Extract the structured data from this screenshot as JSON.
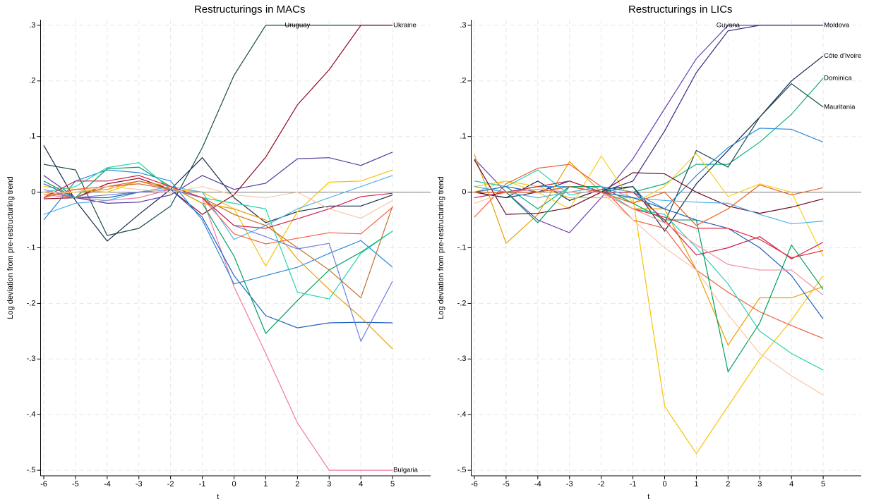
{
  "chart_data": [
    {
      "type": "line",
      "title": "Restructurings in MACs",
      "x_label": "t",
      "y_label": "Log deviation from pre-restructuring trend",
      "x": [
        -6,
        -5,
        -4,
        -3,
        -2,
        -1,
        0,
        1,
        2,
        3,
        4,
        5
      ],
      "xlim": [
        -6.1,
        6.2
      ],
      "ylim": [
        -0.51,
        0.31
      ],
      "xticks": [
        -6,
        -5,
        -4,
        -3,
        -2,
        -1,
        0,
        1,
        2,
        3,
        4,
        5
      ],
      "yticks": [
        {
          "value": 0.3,
          "label": ".3"
        },
        {
          "value": 0.2,
          "label": ".2"
        },
        {
          "value": 0.1,
          "label": ".1"
        },
        0,
        {
          "value": -0.1,
          "label": "-.1"
        },
        {
          "value": -0.2,
          "label": "-.2"
        },
        {
          "value": -0.3,
          "label": "-.3"
        },
        {
          "value": -0.4,
          "label": "-.4"
        },
        {
          "value": -0.5,
          "label": "-.5"
        }
      ],
      "grid": true,
      "zero_line": true,
      "series": [
        {
          "name": "Ukraine",
          "color": "#1a4d4d",
          "values": [
            0.05,
            0.04,
            -0.078,
            -0.065,
            -0.025,
            0.08,
            0.21,
            0.3,
            0.3,
            0.3,
            0.3,
            0.3
          ]
        },
        {
          "name": "Uruguay",
          "color": "#8b0a1e",
          "values": [
            -0.012,
            -0.01,
            0.015,
            0.025,
            0.005,
            -0.04,
            -0.005,
            0.063,
            0.157,
            0.22,
            0.3,
            0.3
          ]
        },
        {
          "name": "Bulgaria",
          "color": "#f27aa0",
          "values": [
            -0.005,
            -0.01,
            -0.015,
            -0.01,
            0.005,
            -0.01,
            -0.17,
            -0.29,
            -0.415,
            -0.5,
            -0.5,
            -0.5
          ]
        },
        {
          "color": "#14284b",
          "values": [
            0.084,
            -0.015,
            -0.088,
            -0.04,
            0.005,
            0.062,
            -0.01,
            -0.055,
            -0.035,
            -0.025,
            -0.025,
            -0.005
          ]
        },
        {
          "color": "#55389a",
          "values": [
            0.03,
            -0.01,
            -0.02,
            -0.018,
            -0.005,
            0.03,
            0.005,
            0.016,
            0.06,
            0.062,
            0.048,
            0.072
          ]
        },
        {
          "color": "#f5c400",
          "values": [
            0.01,
            0.005,
            0.0,
            0.02,
            0.005,
            0.0,
            -0.03,
            -0.133,
            -0.035,
            0.018,
            0.02,
            0.04
          ]
        },
        {
          "color": "#4fb3e8",
          "values": [
            -0.04,
            -0.02,
            -0.015,
            0.0,
            0.01,
            0.0,
            -0.085,
            -0.06,
            -0.03,
            -0.01,
            0.01,
            0.03
          ]
        },
        {
          "color": "#2a8ad8",
          "values": [
            -0.05,
            0.02,
            0.04,
            0.035,
            0.02,
            -0.05,
            -0.165,
            -0.15,
            -0.135,
            -0.11,
            -0.087,
            -0.135
          ]
        },
        {
          "color": "#2060c0",
          "values": [
            0.015,
            -0.01,
            -0.01,
            0.0,
            0.005,
            -0.045,
            -0.15,
            -0.222,
            -0.244,
            -0.235,
            -0.234,
            -0.235
          ]
        },
        {
          "color": "#00a060",
          "values": [
            0.02,
            -0.01,
            0.042,
            0.045,
            0.01,
            -0.02,
            -0.115,
            -0.254,
            -0.195,
            -0.14,
            -0.108,
            -0.07
          ]
        },
        {
          "color": "#25d4b0",
          "values": [
            0.0,
            0.01,
            0.044,
            0.053,
            0.005,
            -0.01,
            -0.02,
            -0.03,
            -0.18,
            -0.192,
            -0.11,
            -0.07
          ]
        },
        {
          "color": "#e8a000",
          "values": [
            -0.005,
            0.0,
            0.005,
            0.02,
            0.01,
            -0.02,
            -0.03,
            -0.05,
            -0.12,
            -0.175,
            -0.225,
            -0.282
          ]
        },
        {
          "color": "#c07030",
          "values": [
            0.0,
            -0.01,
            0.01,
            0.015,
            0.005,
            -0.01,
            -0.04,
            -0.06,
            -0.1,
            -0.14,
            -0.19,
            -0.025
          ]
        },
        {
          "color": "#f06040",
          "values": [
            -0.01,
            0.005,
            0.01,
            0.02,
            0.005,
            -0.01,
            -0.075,
            -0.093,
            -0.083,
            -0.073,
            -0.075,
            -0.027
          ]
        },
        {
          "color": "#7080e0",
          "values": [
            0.005,
            -0.01,
            -0.005,
            0.0,
            0.005,
            -0.01,
            -0.06,
            -0.08,
            -0.102,
            -0.092,
            -0.268,
            -0.16
          ]
        },
        {
          "color": "#d0204a",
          "values": [
            -0.01,
            0.02,
            0.02,
            0.03,
            0.01,
            -0.01,
            -0.06,
            -0.065,
            -0.048,
            -0.03,
            -0.008,
            -0.002
          ]
        },
        {
          "color": "#f8c8a8",
          "values": [
            0.0,
            0.0,
            0.01,
            0.005,
            0.0,
            0.01,
            -0.005,
            -0.01,
            0.0,
            -0.03,
            -0.047,
            -0.015
          ]
        }
      ]
    },
    {
      "type": "line",
      "title": "Restructurings in LICs",
      "x_label": "t",
      "y_label": "Log deviation from pre-restructuring trend",
      "x": [
        -6,
        -5,
        -4,
        -3,
        -2,
        -1,
        0,
        1,
        2,
        3,
        4,
        5
      ],
      "xlim": [
        -6.1,
        6.2
      ],
      "ylim": [
        -0.51,
        0.31
      ],
      "xticks": [
        -6,
        -5,
        -4,
        -3,
        -2,
        -1,
        0,
        1,
        2,
        3,
        4,
        5
      ],
      "yticks": [
        {
          "value": 0.3,
          "label": ".3"
        },
        {
          "value": 0.2,
          "label": ".2"
        },
        {
          "value": 0.1,
          "label": ".1"
        },
        0,
        {
          "value": -0.1,
          "label": "-.1"
        },
        {
          "value": -0.2,
          "label": "-.2"
        },
        {
          "value": -0.3,
          "label": "-.3"
        },
        {
          "value": -0.4,
          "label": "-.4"
        },
        {
          "value": -0.5,
          "label": "-.5"
        }
      ],
      "grid": true,
      "zero_line": true,
      "series": [
        {
          "name": "Moldova",
          "color": "#6a3fb0",
          "values": [
            0.06,
            0.0,
            -0.05,
            -0.073,
            -0.01,
            0.06,
            0.15,
            0.24,
            0.3,
            0.3,
            0.3,
            0.3
          ]
        },
        {
          "name": "Guyana",
          "color": "#3a2a80",
          "values": [
            0.0,
            -0.01,
            0.0,
            0.02,
            0.0,
            0.02,
            0.11,
            0.215,
            0.29,
            0.3,
            0.3,
            0.3
          ]
        },
        {
          "name": "Côte d'Ivoire",
          "color": "#14284b",
          "values": [
            0.0,
            -0.01,
            0.02,
            -0.015,
            0.005,
            0.01,
            -0.07,
            0.015,
            0.075,
            0.135,
            0.2,
            0.245
          ]
        },
        {
          "name": "Dominica",
          "color": "#10b080",
          "values": [
            0.02,
            0.01,
            -0.03,
            0.01,
            0.0,
            0.0,
            0.015,
            0.05,
            0.05,
            0.09,
            0.14,
            0.205
          ]
        },
        {
          "name": "Mauritania",
          "color": "#1a4d4d",
          "values": [
            0.0,
            0.0,
            0.01,
            0.02,
            0.0,
            0.01,
            -0.055,
            0.075,
            0.045,
            0.135,
            0.195,
            0.153
          ]
        },
        {
          "color": "#2a8ad8",
          "values": [
            0.0,
            0.0,
            0.01,
            0.01,
            0.01,
            0.0,
            -0.03,
            0.03,
            0.08,
            0.115,
            0.113,
            0.09
          ]
        },
        {
          "color": "#f5c400",
          "values": [
            0.01,
            0.02,
            0.01,
            -0.01,
            -0.01,
            -0.01,
            -0.385,
            -0.47,
            -0.385,
            -0.3,
            -0.23,
            -0.15
          ]
        },
        {
          "color": "#e8a000",
          "values": [
            0.068,
            -0.092,
            -0.04,
            0.055,
            0.0,
            -0.03,
            -0.03,
            -0.14,
            -0.275,
            -0.19,
            -0.19,
            -0.17
          ]
        },
        {
          "color": "#f8d020",
          "values": [
            0.0,
            0.02,
            0.0,
            -0.03,
            0.065,
            -0.02,
            0.01,
            0.07,
            -0.008,
            0.015,
            0.0,
            -0.115
          ]
        },
        {
          "color": "#f06040",
          "values": [
            -0.045,
            0.015,
            0.043,
            0.05,
            0.01,
            -0.05,
            -0.065,
            -0.14,
            -0.18,
            -0.215,
            -0.24,
            -0.263
          ]
        },
        {
          "color": "#25d4b0",
          "values": [
            0.02,
            0.01,
            0.04,
            -0.005,
            0.005,
            -0.03,
            -0.04,
            -0.1,
            -0.165,
            -0.25,
            -0.29,
            -0.32
          ]
        },
        {
          "color": "#00a060",
          "values": [
            0.01,
            0.0,
            -0.055,
            0.01,
            0.01,
            -0.02,
            -0.05,
            -0.05,
            -0.323,
            -0.235,
            -0.095,
            -0.175
          ]
        },
        {
          "color": "#f8c8a8",
          "values": [
            -0.02,
            0.0,
            0.0,
            0.01,
            0.0,
            -0.05,
            -0.1,
            -0.14,
            -0.22,
            -0.29,
            -0.33,
            -0.365
          ]
        },
        {
          "color": "#d0204a",
          "values": [
            -0.01,
            0.0,
            0.01,
            0.02,
            0.0,
            0.0,
            -0.05,
            -0.113,
            -0.1,
            -0.08,
            -0.12,
            -0.09
          ]
        },
        {
          "color": "#6a0a28",
          "values": [
            0.058,
            -0.04,
            -0.038,
            -0.028,
            0.0,
            0.035,
            0.033,
            0.0,
            -0.025,
            -0.038,
            -0.027,
            -0.012
          ]
        },
        {
          "color": "#4fb3e8",
          "values": [
            0.01,
            0.0,
            -0.01,
            0.0,
            0.01,
            -0.01,
            -0.015,
            -0.018,
            -0.02,
            -0.04,
            -0.057,
            -0.052
          ]
        },
        {
          "color": "#2060c0",
          "values": [
            0.0,
            0.01,
            0.0,
            0.01,
            0.0,
            -0.01,
            -0.03,
            -0.05,
            -0.065,
            -0.1,
            -0.15,
            -0.228
          ]
        },
        {
          "color": "#e03040",
          "values": [
            0.0,
            0.0,
            0.0,
            0.01,
            0.0,
            -0.03,
            -0.045,
            -0.065,
            -0.065,
            -0.085,
            -0.118,
            -0.105
          ]
        },
        {
          "color": "#f090a0",
          "values": [
            0.0,
            0.0,
            0.005,
            0.0,
            0.0,
            -0.03,
            -0.055,
            -0.095,
            -0.13,
            -0.14,
            -0.14,
            -0.185
          ]
        },
        {
          "color": "#e86020",
          "values": [
            0.0,
            0.0,
            0.0,
            0.01,
            0.0,
            -0.02,
            0.0,
            -0.06,
            -0.03,
            0.013,
            -0.005,
            0.008
          ]
        }
      ]
    }
  ]
}
